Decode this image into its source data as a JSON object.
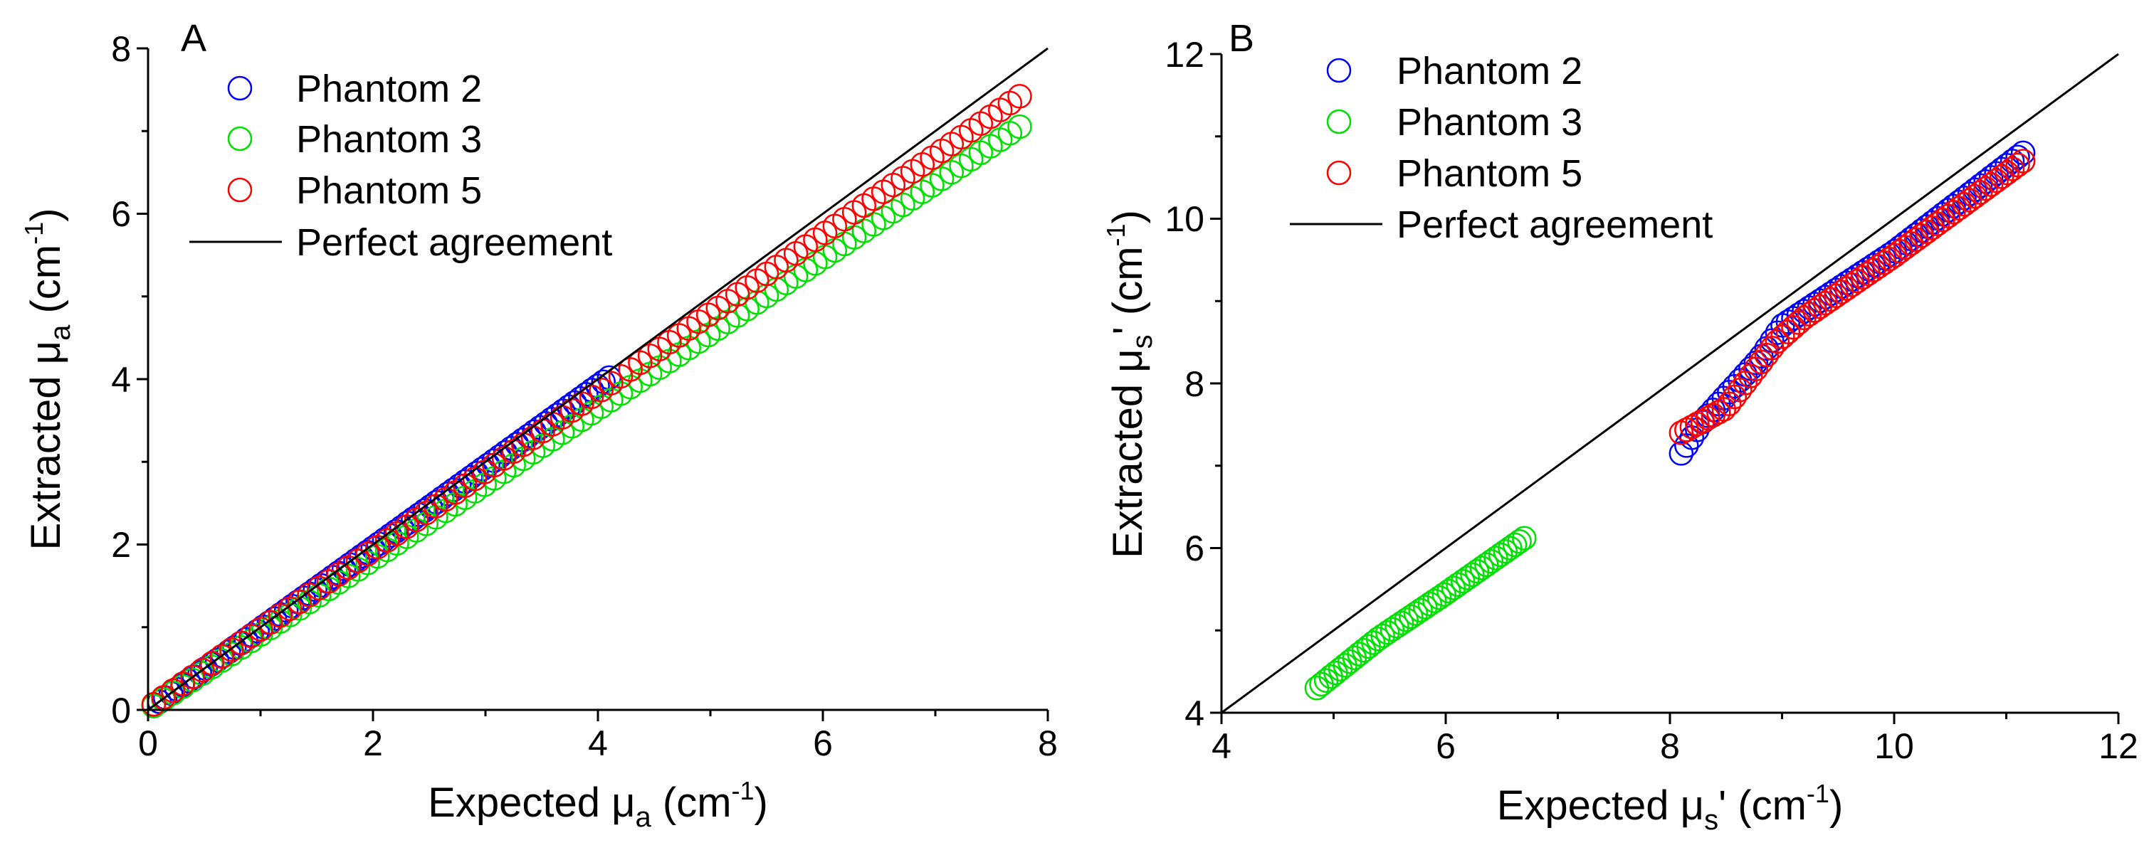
{
  "colors": {
    "phantom_2": "#0000ff",
    "phantom_3": "#00e000",
    "phantom_5": "#ff0000",
    "perfect": "#000000"
  },
  "chart_data": [
    {
      "type": "scatter",
      "panel_label": "A",
      "xlabel": {
        "prefix": "Expected ",
        "sym": "μ",
        "sub": "a",
        "unit_open": " (cm",
        "unit_sup": "-1",
        "unit_close": ")"
      },
      "ylabel": {
        "prefix": "Extracted ",
        "sym": "μ",
        "sub": "a",
        "unit_open": " (cm",
        "unit_sup": "-1",
        "unit_close": ")"
      },
      "xlim": [
        0,
        8
      ],
      "ylim": [
        0,
        8
      ],
      "xticks": [
        0,
        2,
        4,
        6,
        8
      ],
      "yticks": [
        0,
        2,
        4,
        6,
        8
      ],
      "legend": {
        "position": "top-left",
        "entries": [
          "Phantom 2",
          "Phantom 3",
          "Phantom 5",
          "Perfect agreement"
        ]
      },
      "reference_line": {
        "name": "Perfect agreement",
        "x": [
          0,
          8
        ],
        "y": [
          0,
          8
        ]
      },
      "series": [
        {
          "name": "Phantom 2",
          "color": "#0000ff",
          "x_start": 0.05,
          "x_end": 4.1,
          "n": 80,
          "slope": 0.98,
          "intercept": 0.0
        },
        {
          "name": "Phantom 3",
          "color": "#00e000",
          "x_start": 0.05,
          "x_end": 7.75,
          "n": 90,
          "slope": 0.91,
          "intercept": 0.0
        },
        {
          "name": "Phantom 5",
          "color": "#ff0000",
          "x_start": 0.05,
          "x_end": 7.75,
          "n": 90,
          "slope": 0.955,
          "intercept": 0.02
        }
      ]
    },
    {
      "type": "scatter",
      "panel_label": "B",
      "xlabel": {
        "prefix": "Expected ",
        "sym": "μ",
        "sub": "s",
        "prime": "'",
        "unit_open": " (cm",
        "unit_sup": "-1",
        "unit_close": ")"
      },
      "ylabel": {
        "prefix": "Extracted ",
        "sym": "μ",
        "sub": "s",
        "prime": "'",
        "unit_open": " (cm",
        "unit_sup": "-1",
        "unit_close": ")"
      },
      "xlim": [
        4,
        12
      ],
      "ylim": [
        4,
        12
      ],
      "xticks": [
        4,
        6,
        8,
        10,
        12
      ],
      "yticks": [
        4,
        6,
        8,
        10,
        12
      ],
      "legend": {
        "position": "top-left",
        "entries": [
          "Phantom 2",
          "Phantom 3",
          "Phantom 5",
          "Perfect agreement"
        ]
      },
      "reference_line": {
        "name": "Perfect agreement",
        "x": [
          4,
          12
        ],
        "y": [
          4,
          12
        ]
      },
      "series": [
        {
          "name": "Phantom 2",
          "color": "#0000ff",
          "x_start": 8.1,
          "x_end": 11.15,
          "n": 65,
          "curve": [
            [
              8.1,
              7.15
            ],
            [
              8.3,
              7.55
            ],
            [
              8.8,
              8.3
            ],
            [
              9.0,
              8.7
            ],
            [
              10.0,
              9.6
            ],
            [
              11.15,
              10.8
            ]
          ]
        },
        {
          "name": "Phantom 3",
          "color": "#00e000",
          "x_start": 4.85,
          "x_end": 6.7,
          "n": 45,
          "curve": [
            [
              4.85,
              4.3
            ],
            [
              5.4,
              4.9
            ],
            [
              6.0,
              5.45
            ],
            [
              6.7,
              6.12
            ]
          ]
        },
        {
          "name": "Phantom 5",
          "color": "#ff0000",
          "x_start": 8.1,
          "x_end": 11.15,
          "n": 65,
          "curve": [
            [
              8.1,
              7.4
            ],
            [
              8.5,
              7.7
            ],
            [
              8.95,
              8.5
            ],
            [
              9.2,
              8.8
            ],
            [
              10.0,
              9.55
            ],
            [
              11.15,
              10.7
            ]
          ]
        }
      ]
    }
  ]
}
